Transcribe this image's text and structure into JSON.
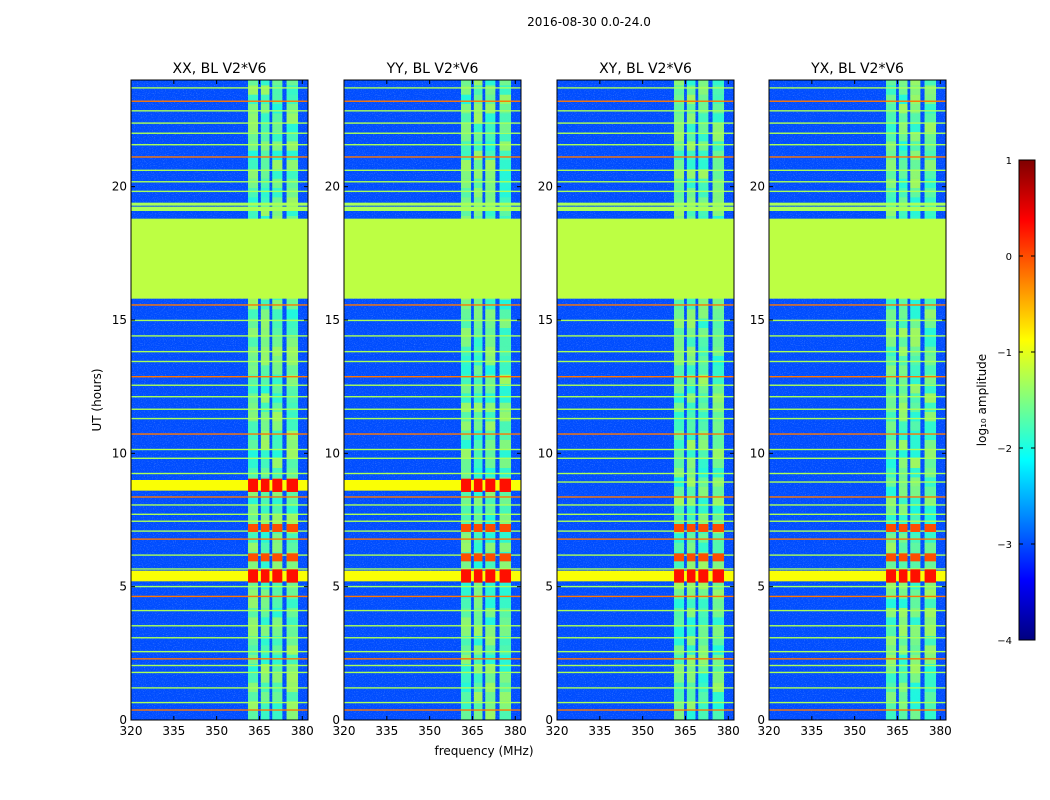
{
  "chart_data": {
    "type": "heatmap",
    "suptitle": "2016-08-30 0.0-24.0",
    "xlabel": "frequency (MHz)",
    "ylabel": "UT (hours)",
    "xlim": [
      320,
      382
    ],
    "ylim": [
      0,
      24
    ],
    "xticks": [
      320,
      335,
      350,
      365,
      380
    ],
    "yticks": [
      0,
      5,
      10,
      15,
      20
    ],
    "panels": [
      {
        "title": "XX, BL V2*V6",
        "strong_rfi_hours": [
          8.8,
          5.4
        ]
      },
      {
        "title": "YY, BL V2*V6",
        "strong_rfi_hours": [
          8.8,
          5.4
        ]
      },
      {
        "title": "XY, BL V2*V6",
        "strong_rfi_hours": [
          5.4
        ]
      },
      {
        "title": "YX, BL V2*V6",
        "strong_rfi_hours": [
          5.4
        ]
      }
    ],
    "flagged_block_hours": [
      15.8,
      18.8
    ],
    "rfi_band_mhz": [
      361,
      380
    ],
    "rfi_subbands_mhz": [
      [
        361,
        364.5
      ],
      [
        365.5,
        368.5
      ],
      [
        369.5,
        373
      ],
      [
        374.5,
        378.5
      ]
    ],
    "colorbar": {
      "label": "log₁₀ amplitude",
      "range": [
        -4,
        1
      ],
      "ticks": [
        "1",
        "0",
        "−1",
        "−2",
        "−3",
        "−4"
      ],
      "colormap": "jet",
      "stops": [
        "#00007f",
        "#0000ff",
        "#0080ff",
        "#00ffff",
        "#80ff80",
        "#ffff00",
        "#ff8000",
        "#ff0000",
        "#7f0000"
      ]
    },
    "background_level": -3.0,
    "flagged_level": -1.2
  }
}
